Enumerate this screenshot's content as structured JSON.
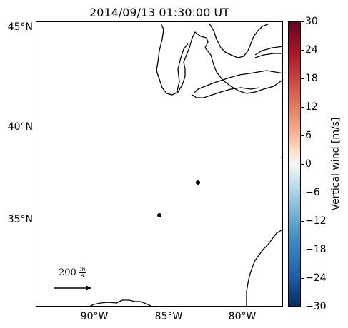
{
  "title": "2014/09/13 01:30:00 UT",
  "lat_labels": [
    "45°N",
    "40°N",
    "35°N"
  ],
  "lon_labels": [
    "90°W",
    "85°W",
    "80°W"
  ],
  "colorbar": {
    "label": "Vertical wind [m/s]",
    "ticks": [
      "30",
      "24",
      "18",
      "12",
      "6",
      "0",
      "−6",
      "−12",
      "−18",
      "−24",
      "−30"
    ],
    "range": [
      -30,
      30
    ],
    "colormap": "RdBu_r"
  },
  "scale": {
    "value": "200",
    "unit_top": "m",
    "unit_bottom": "s"
  },
  "stations": [
    {
      "lon": -83.0,
      "lat": 36.9
    },
    {
      "lon": -85.5,
      "lat": 35.2
    }
  ],
  "colors": {
    "coast": "#000000",
    "station": "#000000"
  }
}
